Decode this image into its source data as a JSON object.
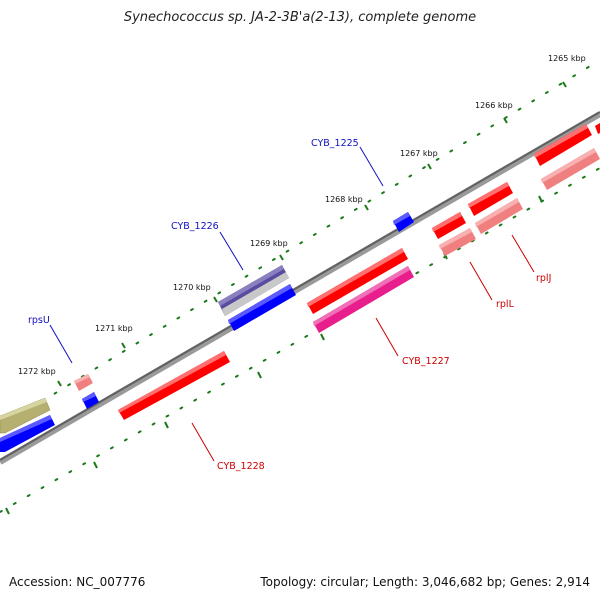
{
  "title": "Synechococcus sp. JA-2-3B'a(2-13), complete genome",
  "footer": {
    "accession": "Accession: NC_007776",
    "summary": "Topology: circular; Length: 3,046,682 bp; Genes: 2,914"
  },
  "scale_labels": [
    "1265 kbp",
    "1266 kbp",
    "1267 kbp",
    "1268 kbp",
    "1269 kbp",
    "1270 kbp",
    "1271 kbp",
    "1272 kbp"
  ],
  "gene_labels": {
    "cyb1225": "CYB_1225",
    "cyb1226": "CYB_1226",
    "rpsU": "rpsU",
    "cyb1227": "CYB_1227",
    "rplL": "rplL",
    "rplJ": "rplJ",
    "cyb1228": "CYB_1228"
  },
  "colors": {
    "backbone": "#7a7a7a",
    "ticks": "#1a7a1a",
    "forward_cds": "#ff0000",
    "forward_rna": "#f08080",
    "reverse_cds": "#0000ff",
    "other_gene": "#b5b070",
    "pseudo": "#e81e8c",
    "purple_gene": "#5a4aa0",
    "label_blue": "#1010c0",
    "label_red": "#cc0000"
  }
}
